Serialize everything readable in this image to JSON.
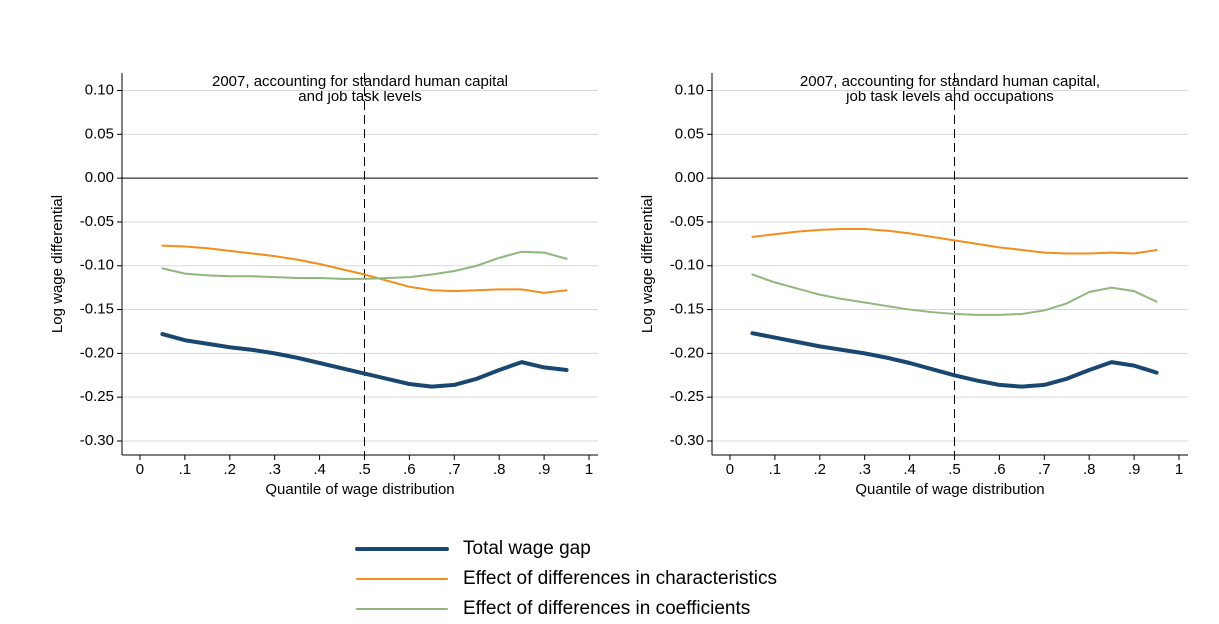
{
  "chart_data": [
    {
      "type": "line",
      "title": [
        "2007, accounting for standard human capital",
        "and job task levels"
      ],
      "xlabel": "Quantile of wage distribution",
      "ylabel": "Log wage differential",
      "x": [
        0.05,
        0.1,
        0.15,
        0.2,
        0.25,
        0.3,
        0.35,
        0.4,
        0.45,
        0.5,
        0.55,
        0.6,
        0.65,
        0.7,
        0.75,
        0.8,
        0.85,
        0.9,
        0.95
      ],
      "xlim": [
        -0.04,
        1.02
      ],
      "ylim": [
        -0.316,
        0.12
      ],
      "xticks": [
        0,
        {
          "value": 0.1,
          "label": ".1"
        },
        {
          "value": 0.2,
          "label": ".2"
        },
        {
          "value": 0.3,
          "label": ".3"
        },
        {
          "value": 0.4,
          "label": ".4"
        },
        {
          "value": 0.5,
          "label": ".5"
        },
        {
          "value": 0.6,
          "label": ".6"
        },
        {
          "value": 0.7,
          "label": ".7"
        },
        {
          "value": 0.8,
          "label": ".8"
        },
        {
          "value": 0.9,
          "label": ".9"
        },
        1
      ],
      "yticks": [
        {
          "value": 0.1,
          "label": "0.10"
        },
        {
          "value": 0.05,
          "label": "0.05"
        },
        {
          "value": 0,
          "label": "0.00"
        },
        {
          "value": -0.05,
          "label": "-0.05"
        },
        {
          "value": -0.1,
          "label": "-0.10"
        },
        {
          "value": -0.15,
          "label": "-0.15"
        },
        {
          "value": -0.2,
          "label": "-0.20"
        },
        {
          "value": -0.25,
          "label": "-0.25"
        },
        {
          "value": -0.3,
          "label": "-0.30"
        }
      ],
      "grid": true,
      "vline": 0.5,
      "series": [
        {
          "name": "Total wage gap",
          "color": "#1a476f",
          "line_width": 4,
          "values": [
            -0.178,
            -0.185,
            -0.189,
            -0.193,
            -0.196,
            -0.2,
            -0.205,
            -0.211,
            -0.217,
            -0.223,
            -0.229,
            -0.235,
            -0.238,
            -0.236,
            -0.229,
            -0.219,
            -0.21,
            -0.216,
            -0.219
          ]
        },
        {
          "name": "Effect of differences in characteristics",
          "color": "#f28e1c",
          "line_width": 2,
          "values": [
            -0.077,
            -0.078,
            -0.08,
            -0.083,
            -0.086,
            -0.089,
            -0.093,
            -0.098,
            -0.104,
            -0.11,
            -0.117,
            -0.124,
            -0.128,
            -0.129,
            -0.128,
            -0.127,
            -0.127,
            -0.131,
            -0.128
          ]
        },
        {
          "name": "Effect of differences in coefficients",
          "color": "#90b77d",
          "line_width": 2,
          "values": [
            -0.103,
            -0.109,
            -0.111,
            -0.112,
            -0.112,
            -0.113,
            -0.114,
            -0.114,
            -0.115,
            -0.115,
            -0.114,
            -0.113,
            -0.11,
            -0.106,
            -0.1,
            -0.091,
            -0.084,
            -0.085,
            -0.092
          ]
        }
      ]
    },
    {
      "type": "line",
      "title": [
        "2007, accounting for standard human capital,",
        "job task levels and occupations"
      ],
      "xlabel": "Quantile of wage distribution",
      "ylabel": "Log wage differential",
      "x": [
        0.05,
        0.1,
        0.15,
        0.2,
        0.25,
        0.3,
        0.35,
        0.4,
        0.45,
        0.5,
        0.55,
        0.6,
        0.65,
        0.7,
        0.75,
        0.8,
        0.85,
        0.9,
        0.95
      ],
      "xlim": [
        -0.04,
        1.02
      ],
      "ylim": [
        -0.316,
        0.12
      ],
      "xticks": [
        0,
        {
          "value": 0.1,
          "label": ".1"
        },
        {
          "value": 0.2,
          "label": ".2"
        },
        {
          "value": 0.3,
          "label": ".3"
        },
        {
          "value": 0.4,
          "label": ".4"
        },
        {
          "value": 0.5,
          "label": ".5"
        },
        {
          "value": 0.6,
          "label": ".6"
        },
        {
          "value": 0.7,
          "label": ".7"
        },
        {
          "value": 0.8,
          "label": ".8"
        },
        {
          "value": 0.9,
          "label": ".9"
        },
        1
      ],
      "yticks": [
        {
          "value": 0.1,
          "label": "0.10"
        },
        {
          "value": 0.05,
          "label": "0.05"
        },
        {
          "value": 0,
          "label": "0.00"
        },
        {
          "value": -0.05,
          "label": "-0.05"
        },
        {
          "value": -0.1,
          "label": "-0.10"
        },
        {
          "value": -0.15,
          "label": "-0.15"
        },
        {
          "value": -0.2,
          "label": "-0.20"
        },
        {
          "value": -0.25,
          "label": "-0.25"
        },
        {
          "value": -0.3,
          "label": "-0.30"
        }
      ],
      "grid": true,
      "vline": 0.5,
      "series": [
        {
          "color": "#1a476f",
          "line_width": 4,
          "values": [
            -0.177,
            -0.182,
            -0.187,
            -0.192,
            -0.196,
            -0.2,
            -0.205,
            -0.211,
            -0.218,
            -0.225,
            -0.231,
            -0.236,
            -0.238,
            -0.236,
            -0.229,
            -0.219,
            -0.21,
            -0.214,
            -0.222
          ]
        },
        {
          "color": "#f28e1c",
          "line_width": 2,
          "values": [
            -0.067,
            -0.064,
            -0.061,
            -0.059,
            -0.058,
            -0.058,
            -0.06,
            -0.063,
            -0.067,
            -0.071,
            -0.075,
            -0.079,
            -0.082,
            -0.085,
            -0.086,
            -0.086,
            -0.085,
            -0.086,
            -0.082
          ]
        },
        {
          "color": "#90b77d",
          "line_width": 2,
          "values": [
            -0.11,
            -0.119,
            -0.126,
            -0.133,
            -0.138,
            -0.142,
            -0.146,
            -0.15,
            -0.153,
            -0.155,
            -0.156,
            -0.156,
            -0.155,
            -0.151,
            -0.143,
            -0.13,
            -0.125,
            -0.129,
            -0.141
          ]
        }
      ]
    }
  ]
}
